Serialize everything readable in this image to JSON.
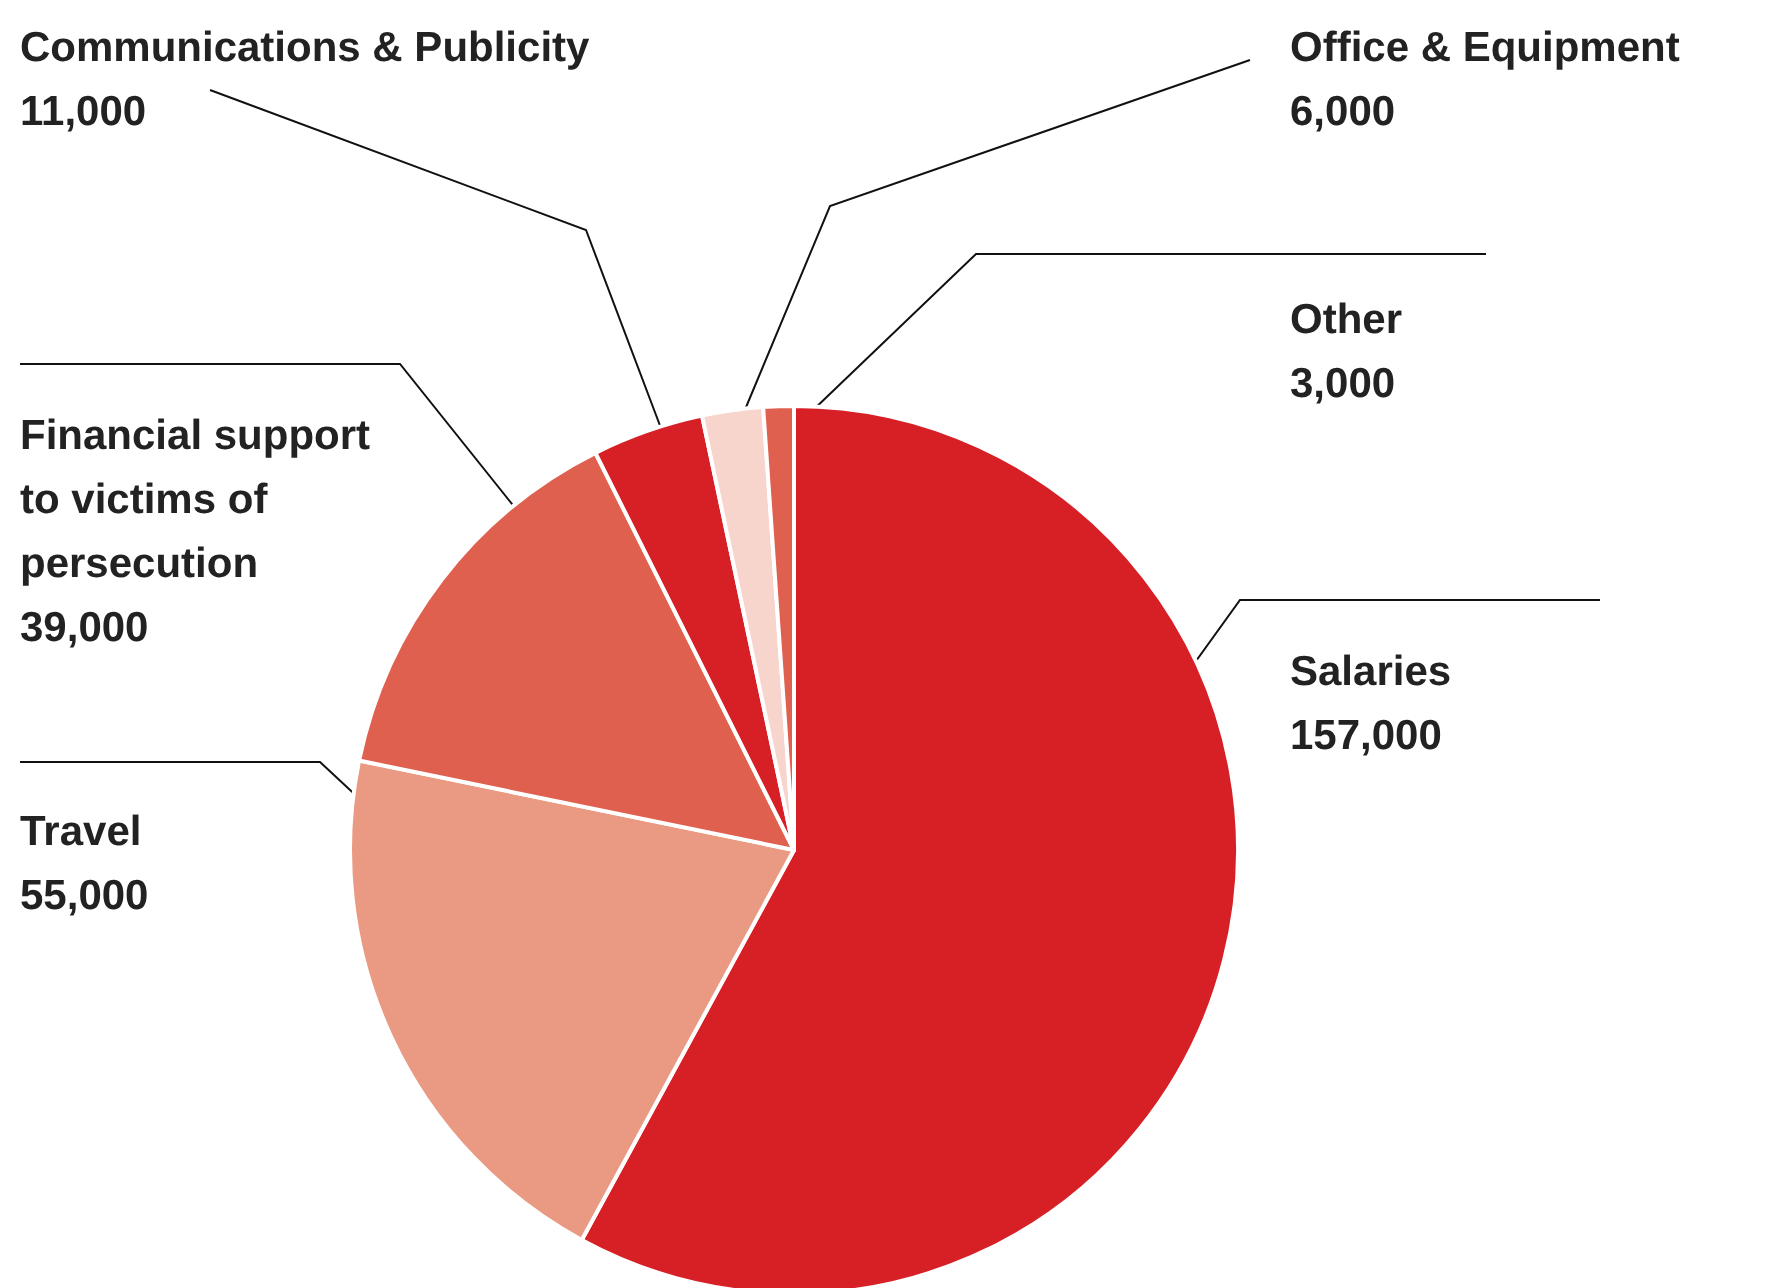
{
  "chart_data": {
    "type": "pie",
    "categories": [
      "Salaries",
      "Travel",
      "Financial support to victims of persecution",
      "Communications & Publicity",
      "Office & Equipment",
      "Other"
    ],
    "values": [
      157000,
      55000,
      39000,
      11000,
      6000,
      3000
    ],
    "value_labels": [
      "157,000",
      "55,000",
      "39,000",
      "11,000",
      "6,000",
      "3,000"
    ],
    "colors": [
      "#d71f26",
      "#ea9a82",
      "#e06050",
      "#d71f26",
      "#f7d4cc",
      "#e06050"
    ]
  }
}
